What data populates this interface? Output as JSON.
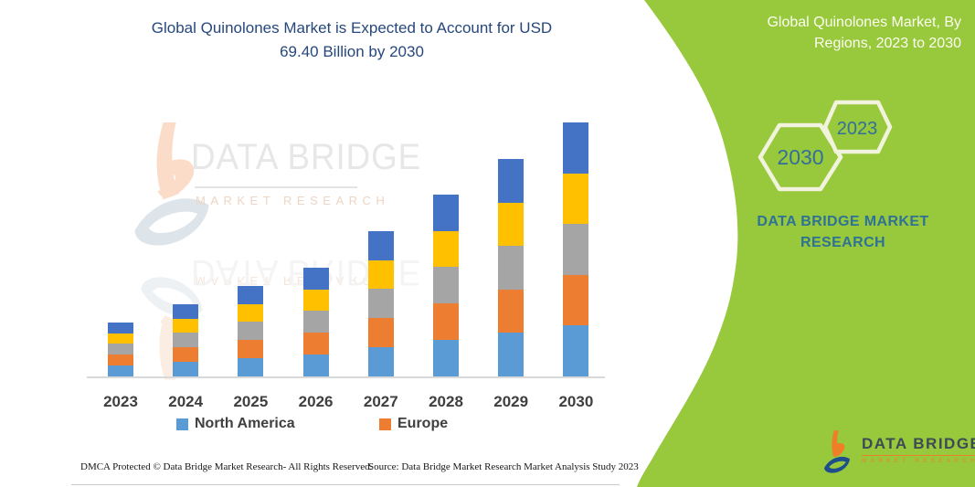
{
  "page": {
    "title_line1": "Global Quinolones Market is Expected to Account for USD",
    "title_line2": "69.40 Billion by 2030",
    "footer_left": "DMCA Protected © Data Bridge Market Research-  All Rights Reserved.",
    "footer_right": "Source: Data Bridge Market Research  Market Analysis Study 2023"
  },
  "sidebar": {
    "heading_line1": "Global Quinolones Market, By",
    "heading_line2": "Regions, 2023 to 2030",
    "hexagons": [
      {
        "label": "2030"
      },
      {
        "label": "2023"
      }
    ],
    "brand_line1": "DATA BRIDGE MARKET",
    "brand_line2": "RESEARCH",
    "colors": {
      "background_green": "#98C83C",
      "hexagon_outline": "#F2F3DD",
      "hexagon_text": "#336F99",
      "brand_text": "#2E7296",
      "heading_text": "#FCFDF0"
    }
  },
  "watermark": {
    "brand": "DATA BRIDGE",
    "sub": "MARKET RESEARCH"
  },
  "logo": {
    "name": "DATA BRIDGE",
    "sub": "MARKET RESEARCH"
  },
  "chart_data": {
    "type": "bar",
    "stacked": true,
    "title": "Global Quinolones Market is Expected to Account for USD 69.40 Billion by 2030",
    "unit": "USD Billion (estimated; no y-axis shown)",
    "categories": [
      "2023",
      "2024",
      "2025",
      "2026",
      "2027",
      "2028",
      "2029",
      "2030"
    ],
    "series": [
      {
        "name": "North America",
        "color": "#5B9BD5",
        "in_legend": true,
        "values": [
          2.96,
          3.96,
          4.96,
          5.96,
          7.96,
          9.96,
          11.9,
          13.88
        ]
      },
      {
        "name": "Europe",
        "color": "#ED7D31",
        "in_legend": true,
        "values": [
          2.96,
          3.96,
          4.96,
          5.96,
          7.96,
          9.96,
          11.9,
          13.88
        ]
      },
      {
        "name": "Unlabeled (gray)",
        "color": "#A5A5A5",
        "in_legend": false,
        "values": [
          2.96,
          3.96,
          4.96,
          5.96,
          7.96,
          9.96,
          11.9,
          13.88
        ]
      },
      {
        "name": "Unlabeled (yellow)",
        "color": "#FFC000",
        "in_legend": false,
        "values": [
          2.96,
          3.96,
          4.96,
          5.96,
          7.96,
          9.96,
          11.9,
          13.88
        ]
      },
      {
        "name": "Unlabeled (dark blue)",
        "color": "#4472C4",
        "in_legend": false,
        "values": [
          2.96,
          3.96,
          4.96,
          5.96,
          7.96,
          9.96,
          11.9,
          13.88
        ]
      }
    ],
    "totals": [
      14.8,
      19.8,
      24.8,
      29.8,
      39.8,
      49.8,
      59.5,
      69.4
    ],
    "legend": [
      "North America",
      "Europe"
    ],
    "legend_position": "bottom",
    "axes": {
      "y_axis_visible": false,
      "gridlines": false,
      "x_baseline_visible": true
    },
    "ylim": [
      0,
      70
    ]
  }
}
